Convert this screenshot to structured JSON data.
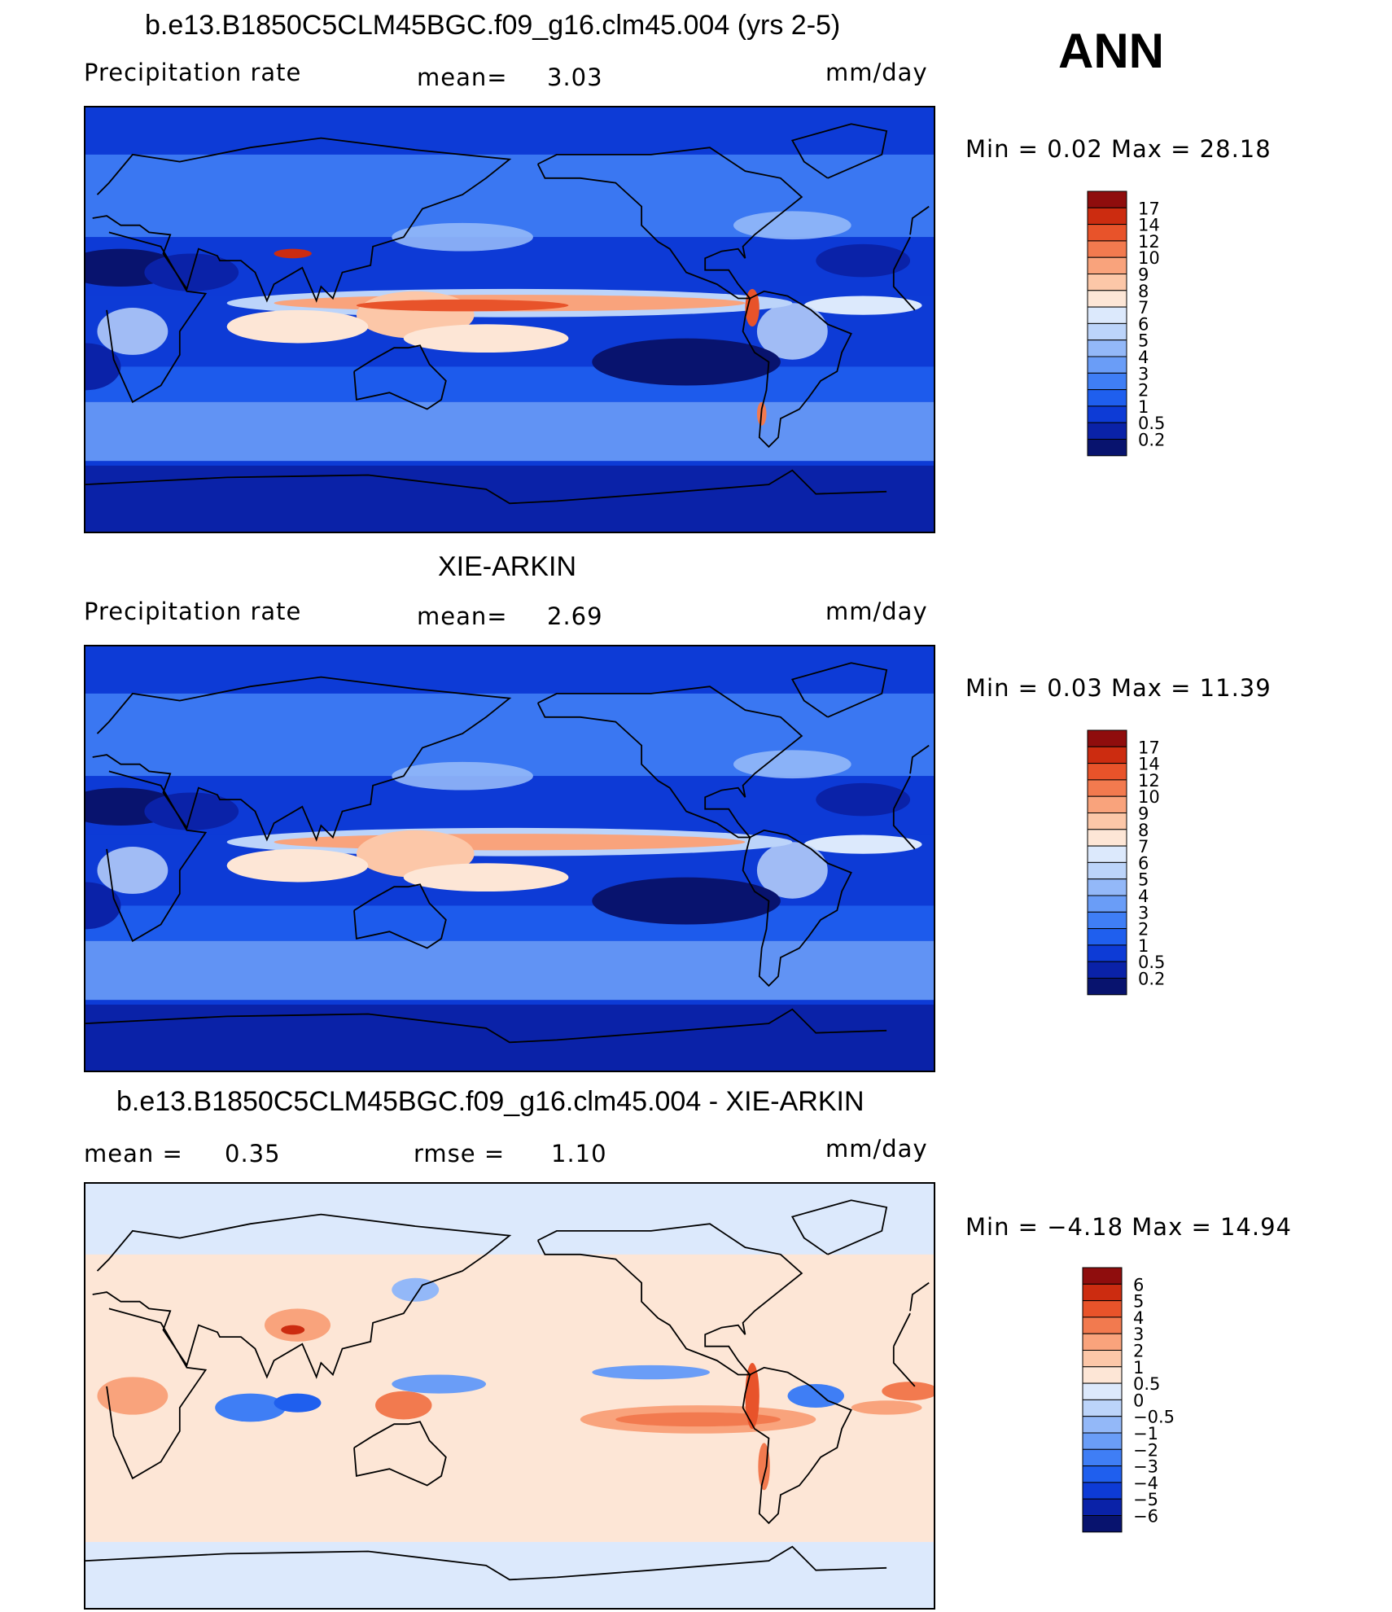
{
  "season": "ANN",
  "panels": [
    {
      "title": "b.e13.B1850C5CLM45BGC.f09_g16.clm45.004 (yrs 2-5)",
      "left_label": "Precipitation  rate",
      "center_label": "mean=",
      "center_value": "3.03",
      "units": "mm/day",
      "minmax_text": "Min  =     0.02  Max  =    28.18"
    },
    {
      "title": "XIE-ARKIN",
      "left_label": "Precipitation  rate",
      "center_label": "mean=",
      "center_value": "2.69",
      "units": "mm/day",
      "minmax_text": "Min  =     0.03  Max  =    11.39"
    },
    {
      "title": "b.e13.B1850C5CLM45BGC.f09_g16.clm45.004 - XIE-ARKIN",
      "left_label": "mean  =",
      "left_value": "0.35",
      "center_label": "rmse  =",
      "center_value": "1.10",
      "units": "mm/day",
      "minmax_text": "Min  =    −4.18  Max  =    14.94"
    }
  ],
  "chart_data": [
    {
      "type": "heatmap",
      "title": "b.e13.B1850C5CLM45BGC.f09_g16.clm45.004 (yrs 2-5)",
      "variable": "Precipitation  rate",
      "units": "mm/day",
      "mean": 3.03,
      "min": 0.02,
      "max": 28.18,
      "contour_levels": [
        0.2,
        0.5,
        1,
        2,
        3,
        4,
        5,
        6,
        7,
        8,
        9,
        10,
        12,
        14,
        17
      ],
      "colorbar_labels": [
        "17",
        "14",
        "12",
        "10",
        "9",
        "8",
        "7",
        "6",
        "5",
        "4",
        "3",
        "2",
        "1",
        "0.5",
        "0.2"
      ],
      "colors": [
        "#08136e",
        "#0a22a8",
        "#0d3bd6",
        "#1f5fee",
        "#3f7ef5",
        "#6a9df7",
        "#93b8f8",
        "#bcd4fa",
        "#dce9fc",
        "#fde6d6",
        "#fcc7a8",
        "#f9a37c",
        "#f27a4f",
        "#e8532a",
        "#cc2c10",
        "#8f0d0d"
      ]
    },
    {
      "type": "heatmap",
      "title": "XIE-ARKIN",
      "variable": "Precipitation  rate",
      "units": "mm/day",
      "mean": 2.69,
      "min": 0.03,
      "max": 11.39,
      "contour_levels": [
        0.2,
        0.5,
        1,
        2,
        3,
        4,
        5,
        6,
        7,
        8,
        9,
        10,
        12,
        14,
        17
      ],
      "colorbar_labels": [
        "17",
        "14",
        "12",
        "10",
        "9",
        "8",
        "7",
        "6",
        "5",
        "4",
        "3",
        "2",
        "1",
        "0.5",
        "0.2"
      ],
      "colors": [
        "#08136e",
        "#0a22a8",
        "#0d3bd6",
        "#1f5fee",
        "#3f7ef5",
        "#6a9df7",
        "#93b8f8",
        "#bcd4fa",
        "#dce9fc",
        "#fde6d6",
        "#fcc7a8",
        "#f9a37c",
        "#f27a4f",
        "#e8532a",
        "#cc2c10",
        "#8f0d0d"
      ]
    },
    {
      "type": "heatmap",
      "title": "b.e13.B1850C5CLM45BGC.f09_g16.clm45.004 - XIE-ARKIN",
      "units": "mm/day",
      "mean": 0.35,
      "rmse": 1.1,
      "min": -4.18,
      "max": 14.94,
      "contour_levels": [
        -6,
        -5,
        -4,
        -3,
        -2,
        -1,
        -0.5,
        0,
        0.5,
        1,
        2,
        3,
        4,
        5,
        6
      ],
      "colorbar_labels": [
        "6",
        "5",
        "4",
        "3",
        "2",
        "1",
        "0.5",
        "0",
        "−0.5",
        "−1",
        "−2",
        "−3",
        "−4",
        "−5",
        "−6"
      ],
      "colors": [
        "#08136e",
        "#0a22a8",
        "#0d3bd6",
        "#1f5fee",
        "#3f7ef5",
        "#6a9df7",
        "#93b8f8",
        "#bcd4fa",
        "#dce9fc",
        "#fde6d6",
        "#fcc7a8",
        "#f9a37c",
        "#f27a4f",
        "#e8532a",
        "#cc2c10",
        "#8f0d0d"
      ]
    }
  ]
}
